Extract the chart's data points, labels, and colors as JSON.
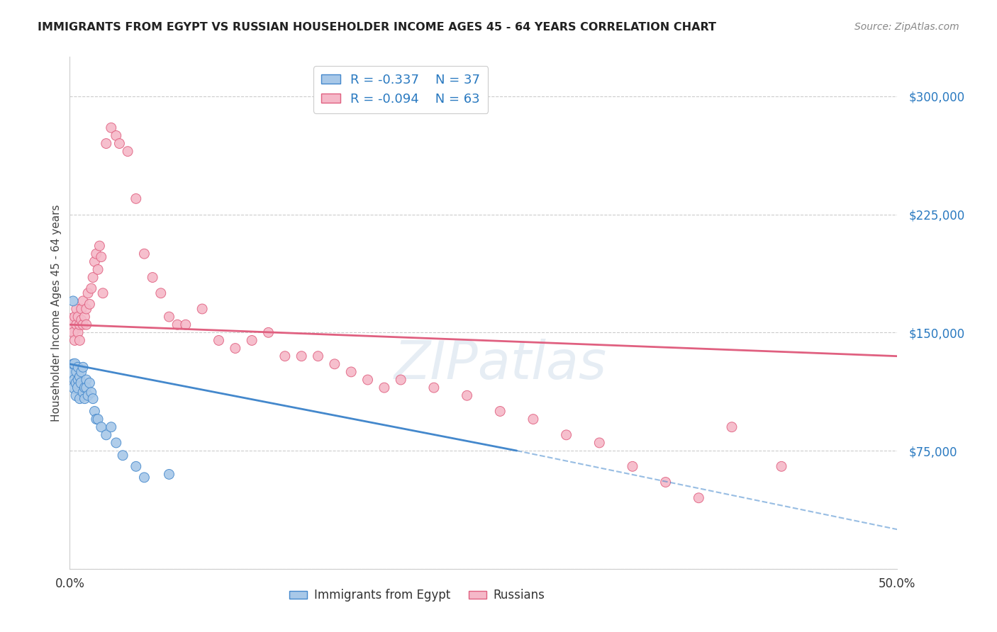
{
  "title": "IMMIGRANTS FROM EGYPT VS RUSSIAN HOUSEHOLDER INCOME AGES 45 - 64 YEARS CORRELATION CHART",
  "source": "Source: ZipAtlas.com",
  "ylabel": "Householder Income Ages 45 - 64 years",
  "xlim": [
    0.0,
    0.5
  ],
  "ylim": [
    0,
    325000
  ],
  "yticks": [
    0,
    75000,
    150000,
    225000,
    300000
  ],
  "ytick_labels": [
    "",
    "$75,000",
    "$150,000",
    "$225,000",
    "$300,000"
  ],
  "xticks": [
    0.0,
    0.1,
    0.2,
    0.3,
    0.4,
    0.5
  ],
  "xtick_labels_show": [
    "0.0%",
    "",
    "",
    "",
    "",
    "50.0%"
  ],
  "legend_r_egypt": "R = -0.337",
  "legend_n_egypt": "N = 37",
  "legend_r_russia": "R = -0.094",
  "legend_n_russia": "N = 63",
  "watermark": "ZIPatlas",
  "color_egypt": "#a8c8e8",
  "color_russia": "#f5b8c8",
  "color_egypt_line": "#4488cc",
  "color_russia_line": "#e06080",
  "color_title": "#222222",
  "color_source": "#888888",
  "color_tick_label_right": "#2979c0",
  "background_color": "#ffffff",
  "grid_color": "#cccccc",
  "egypt_x": [
    0.001,
    0.002,
    0.002,
    0.003,
    0.003,
    0.003,
    0.004,
    0.004,
    0.004,
    0.005,
    0.005,
    0.005,
    0.006,
    0.006,
    0.007,
    0.007,
    0.008,
    0.008,
    0.009,
    0.009,
    0.01,
    0.01,
    0.011,
    0.012,
    0.013,
    0.014,
    0.015,
    0.016,
    0.017,
    0.019,
    0.022,
    0.025,
    0.028,
    0.032,
    0.04,
    0.045,
    0.06
  ],
  "egypt_y": [
    125000,
    130000,
    170000,
    120000,
    115000,
    130000,
    125000,
    118000,
    110000,
    120000,
    128000,
    115000,
    122000,
    108000,
    125000,
    118000,
    112000,
    128000,
    115000,
    108000,
    120000,
    115000,
    110000,
    118000,
    112000,
    108000,
    100000,
    95000,
    95000,
    90000,
    85000,
    90000,
    80000,
    72000,
    65000,
    58000,
    60000
  ],
  "egypt_size": [
    120,
    100,
    100,
    120,
    150,
    120,
    100,
    120,
    120,
    100,
    100,
    120,
    100,
    100,
    100,
    120,
    100,
    100,
    100,
    100,
    100,
    100,
    100,
    100,
    100,
    100,
    100,
    100,
    100,
    100,
    100,
    100,
    100,
    100,
    100,
    100,
    100
  ],
  "russia_x": [
    0.001,
    0.002,
    0.003,
    0.003,
    0.004,
    0.004,
    0.005,
    0.005,
    0.006,
    0.006,
    0.007,
    0.007,
    0.008,
    0.008,
    0.009,
    0.01,
    0.01,
    0.011,
    0.012,
    0.013,
    0.014,
    0.015,
    0.016,
    0.017,
    0.018,
    0.019,
    0.02,
    0.022,
    0.025,
    0.028,
    0.03,
    0.035,
    0.04,
    0.045,
    0.05,
    0.055,
    0.06,
    0.065,
    0.07,
    0.08,
    0.09,
    0.1,
    0.11,
    0.12,
    0.13,
    0.14,
    0.15,
    0.16,
    0.17,
    0.18,
    0.19,
    0.2,
    0.22,
    0.24,
    0.26,
    0.28,
    0.3,
    0.32,
    0.34,
    0.36,
    0.38,
    0.4,
    0.43
  ],
  "russia_y": [
    155000,
    150000,
    160000,
    145000,
    165000,
    155000,
    150000,
    160000,
    155000,
    145000,
    165000,
    158000,
    170000,
    155000,
    160000,
    165000,
    155000,
    175000,
    168000,
    178000,
    185000,
    195000,
    200000,
    190000,
    205000,
    198000,
    175000,
    270000,
    280000,
    275000,
    270000,
    265000,
    235000,
    200000,
    185000,
    175000,
    160000,
    155000,
    155000,
    165000,
    145000,
    140000,
    145000,
    150000,
    135000,
    135000,
    135000,
    130000,
    125000,
    120000,
    115000,
    120000,
    115000,
    110000,
    100000,
    95000,
    85000,
    80000,
    65000,
    55000,
    45000,
    90000,
    65000
  ],
  "russia_size": [
    500,
    100,
    100,
    100,
    100,
    100,
    100,
    100,
    100,
    100,
    100,
    100,
    100,
    100,
    100,
    100,
    100,
    100,
    100,
    100,
    100,
    100,
    100,
    100,
    100,
    100,
    100,
    100,
    100,
    100,
    100,
    100,
    100,
    100,
    100,
    100,
    100,
    100,
    100,
    100,
    100,
    100,
    100,
    100,
    100,
    100,
    100,
    100,
    100,
    100,
    100,
    100,
    100,
    100,
    100,
    100,
    100,
    100,
    100,
    100,
    100,
    100,
    100
  ],
  "egypt_line_x0": 0.0,
  "egypt_line_y0": 130000,
  "egypt_line_x1": 0.27,
  "egypt_line_y1": 75000,
  "egypt_line_x1_dash": 0.27,
  "egypt_line_x2_dash": 0.5,
  "egypt_line_y2_dash": 25000,
  "russia_line_x0": 0.0,
  "russia_line_y0": 155000,
  "russia_line_x1": 0.5,
  "russia_line_y1": 135000
}
